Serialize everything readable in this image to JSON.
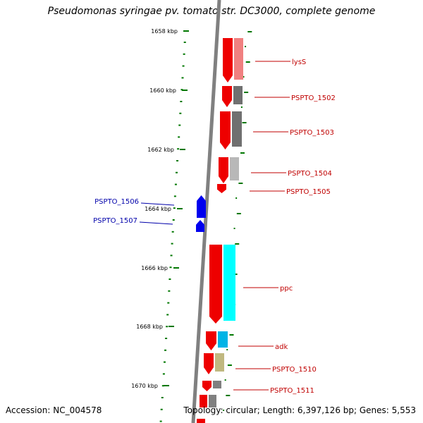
{
  "title": "Pseudomonas syringae pv. tomato str. DC3000, complete genome",
  "footer": {
    "accession": "Accession: NC_004578",
    "topology": "Topology: circular; Length: 6,397,126 bp; Genes: 5,553"
  },
  "colors": {
    "forward_cds": "#ee0000",
    "reverse_cds": "#0000ee",
    "forward_label": "#c00000",
    "reverse_label": "#0000aa",
    "backbone": "#808080",
    "tick": "#007700",
    "cog_colors": [
      "#f08080",
      "#707070",
      "#707070",
      "#b8b8b8",
      "#00ffff",
      "#00b4e6",
      "#c0b880",
      "#808080"
    ]
  },
  "kbp_labels": [
    "1658 kbp",
    "1660 kbp",
    "1662 kbp",
    "1664 kbp",
    "1666 kbp",
    "1668 kbp",
    "1670 kbp"
  ],
  "forward_genes": [
    {
      "label": "lysS",
      "cog_color": "#f08080"
    },
    {
      "label": "PSPTO_1502",
      "cog_color": "#707070"
    },
    {
      "label": "PSPTO_1503",
      "cog_color": "#707070"
    },
    {
      "label": "PSPTO_1504",
      "cog_color": "#b8b8b8"
    },
    {
      "label": "PSPTO_1505",
      "cog_color": ""
    },
    {
      "label": "ppc",
      "cog_color": "#00ffff"
    },
    {
      "label": "adk",
      "cog_color": "#00b4e6"
    },
    {
      "label": "PSPTO_1510",
      "cog_color": "#c0b880"
    },
    {
      "label": "PSPTO_1511",
      "cog_color": "#808080"
    }
  ],
  "reverse_genes": [
    {
      "label": "PSPTO_1506"
    },
    {
      "label": "PSPTO_1507"
    }
  ]
}
